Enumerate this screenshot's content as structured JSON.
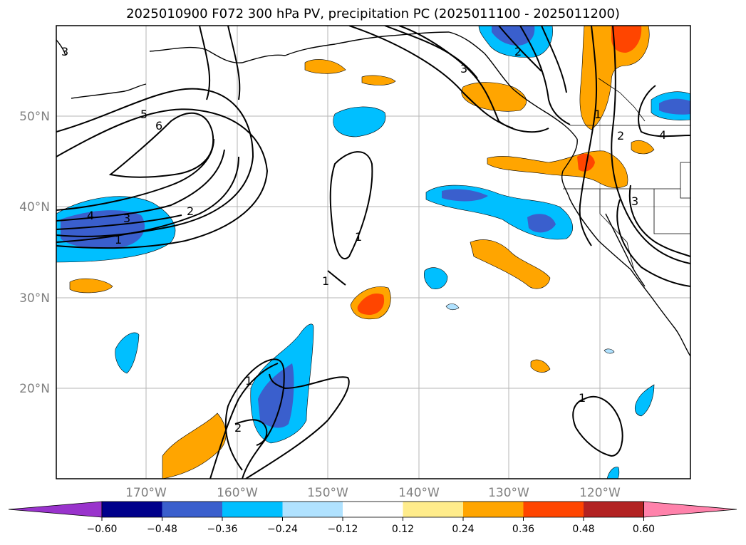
{
  "title": "2025010900 F072 300 hPa PV, precipitation PC (2025011100 - 2025011200)",
  "lat_labels": [
    "50°N",
    "40°N",
    "30°N",
    "20°N"
  ],
  "lon_labels": [
    "170°W",
    "160°W",
    "150°W",
    "140°W",
    "130°W",
    "120°W"
  ],
  "colorbar": {
    "ticks": [
      "−0.60",
      "−0.48",
      "−0.36",
      "−0.24",
      "−0.12",
      "0.12",
      "0.24",
      "0.36",
      "0.48",
      "0.60"
    ],
    "colors": [
      "#9933cc",
      "#00008b",
      "#3a5fcd",
      "#00bfff",
      "#b0e2ff",
      "#ffffff",
      "#ffec8b",
      "#ffa500",
      "#ff4500",
      "#b22222",
      "#ff82ab"
    ]
  },
  "contour_labels": [
    "1",
    "2",
    "3",
    "4",
    "5",
    "6"
  ]
}
